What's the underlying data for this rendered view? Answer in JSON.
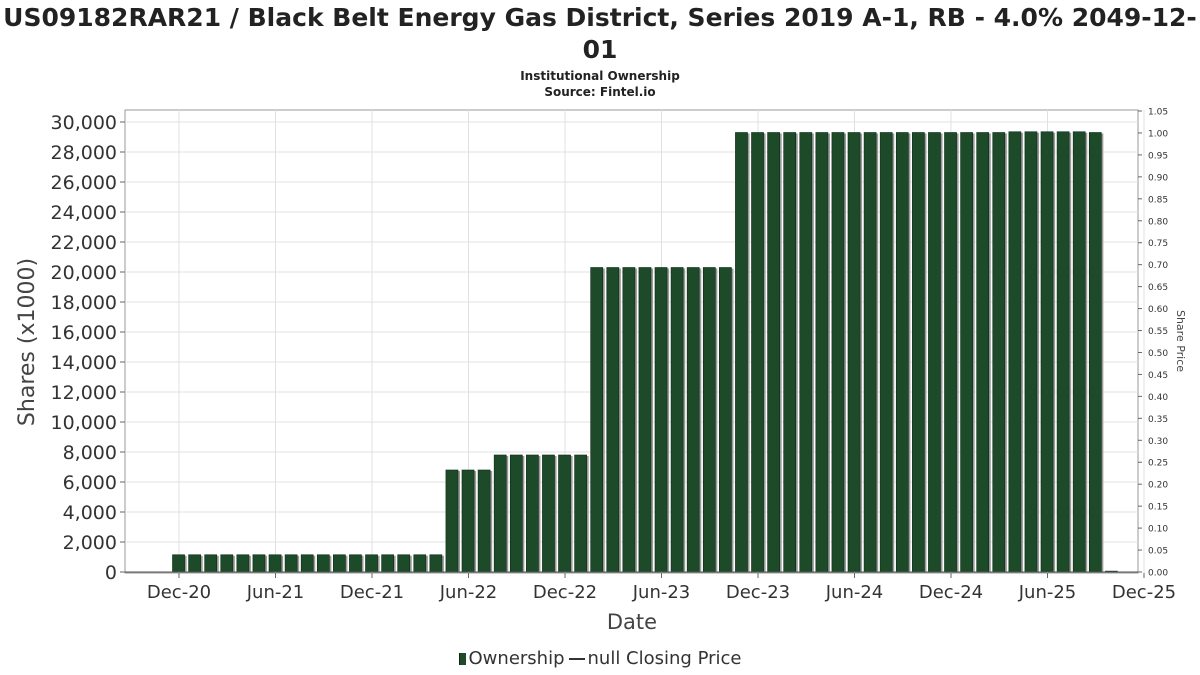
{
  "title": "US09182RAR21 / Black Belt Energy Gas District, Series 2019 A-1, RB - 4.0% 2049-12-01",
  "subtitle_lines": [
    "Institutional Ownership",
    "Source: Fintel.io"
  ],
  "colors": {
    "bar": "#1d4a29",
    "bar_edge": "#0e2a14",
    "bar_shadow": "#9a9a9a",
    "grid": "#e0e0e0",
    "axis": "#666666"
  },
  "legend": {
    "ownership_label": "Ownership",
    "price_label": "null Closing Price"
  },
  "chart_data": {
    "type": "bar",
    "title": "US09182RAR21 / Black Belt Energy Gas District, Series 2019 A-1, RB - 4.0% 2049-12-01",
    "xlabel": "Date",
    "ylabel": "Shares (x1000)",
    "y2label": "Share Price",
    "ylim": [
      0,
      30000
    ],
    "y2lim": [
      0,
      1.05
    ],
    "yticks": [
      "0",
      "2,000",
      "4,000",
      "6,000",
      "8,000",
      "10,000",
      "12,000",
      "14,000",
      "16,000",
      "18,000",
      "20,000",
      "22,000",
      "24,000",
      "26,000",
      "28,000",
      "30,000"
    ],
    "y2ticks": [
      "0.00",
      "0.05",
      "0.10",
      "0.15",
      "0.20",
      "0.25",
      "0.30",
      "0.35",
      "0.40",
      "0.45",
      "0.50",
      "0.55",
      "0.60",
      "0.65",
      "0.70",
      "0.75",
      "0.80",
      "0.85",
      "0.90",
      "0.95",
      "1.00",
      "1.05"
    ],
    "xticks": [
      "Dec-20",
      "Jun-21",
      "Dec-21",
      "Jun-22",
      "Dec-22",
      "Jun-23",
      "Dec-23",
      "Jun-24",
      "Dec-24",
      "Jun-25",
      "Dec-25"
    ],
    "grid": true,
    "legend_position": "bottom",
    "series": [
      {
        "name": "Ownership",
        "values": [
          1150,
          1150,
          1150,
          1150,
          1150,
          1150,
          1150,
          1150,
          1150,
          1150,
          1150,
          1150,
          1150,
          1150,
          1150,
          1150,
          1150,
          6800,
          6800,
          6800,
          7800,
          7800,
          7800,
          7800,
          7800,
          7800,
          20300,
          20300,
          20300,
          20300,
          20300,
          20300,
          20300,
          20300,
          20300,
          29300,
          29300,
          29300,
          29300,
          29300,
          29300,
          29300,
          29300,
          29300,
          29300,
          29300,
          29300,
          29300,
          29300,
          29300,
          29300,
          29300,
          29350,
          29350,
          29350,
          29350,
          29350,
          29300,
          60
        ]
      }
    ]
  }
}
